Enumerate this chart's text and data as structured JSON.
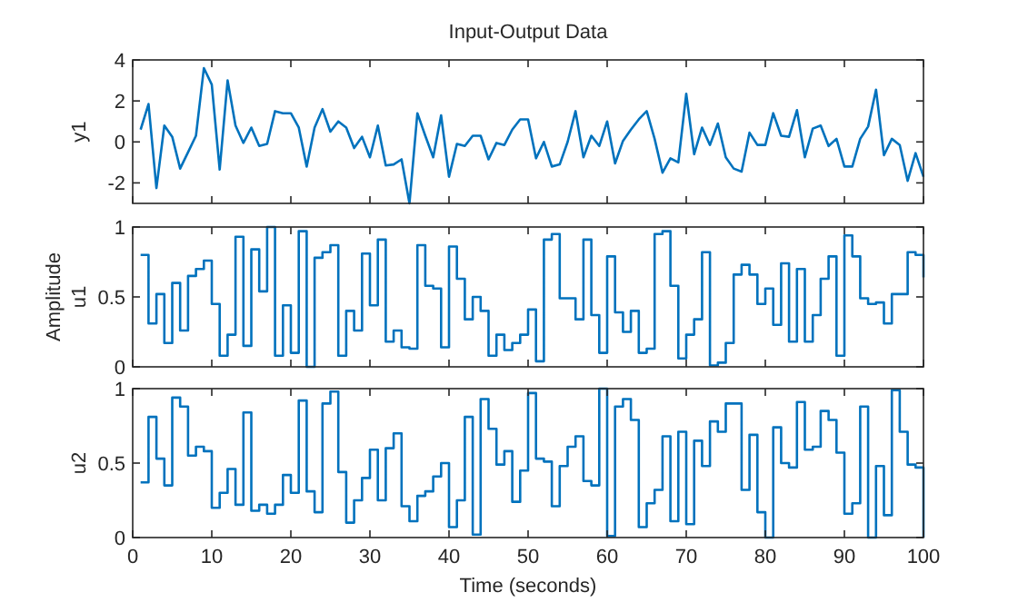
{
  "chart_data": [
    {
      "type": "line",
      "title": "Input-Output Data",
      "ylabel": "y1",
      "tick_labels": "y",
      "x": [
        1,
        2,
        3,
        4,
        5,
        6,
        7,
        8,
        9,
        10,
        11,
        12,
        13,
        14,
        15,
        16,
        17,
        18,
        19,
        20,
        21,
        22,
        23,
        24,
        25,
        26,
        27,
        28,
        29,
        30,
        31,
        32,
        33,
        34,
        35,
        36,
        37,
        38,
        39,
        40,
        41,
        42,
        43,
        44,
        45,
        46,
        47,
        48,
        49,
        50,
        51,
        52,
        53,
        54,
        55,
        56,
        57,
        58,
        59,
        60,
        61,
        62,
        63,
        64,
        65,
        66,
        67,
        68,
        69,
        70,
        71,
        72,
        73,
        74,
        75,
        76,
        77,
        78,
        79,
        80,
        81,
        82,
        83,
        84,
        85,
        86,
        87,
        88,
        89,
        90,
        91,
        92,
        93,
        94,
        95,
        96,
        97,
        98,
        99,
        100
      ],
      "series": [
        {
          "color": "#0072bd",
          "values": [
            0.6,
            1.85,
            -2.25,
            0.8,
            0.25,
            -1.3,
            -0.5,
            0.3,
            3.6,
            2.8,
            -1.35,
            3.0,
            0.8,
            -0.05,
            0.7,
            -0.2,
            -0.1,
            1.5,
            1.4,
            1.4,
            0.7,
            -1.2,
            0.7,
            1.6,
            0.5,
            1.0,
            0.7,
            -0.3,
            0.25,
            -0.75,
            0.8,
            -1.15,
            -1.1,
            -0.85,
            -3.0,
            1.4,
            0.3,
            -0.75,
            1.3,
            -1.7,
            -0.1,
            -0.2,
            0.3,
            0.3,
            -0.85,
            -0.05,
            -0.15,
            0.6,
            1.1,
            1.1,
            -0.8,
            0.0,
            -1.2,
            -1.1,
            0.0,
            1.5,
            -0.75,
            0.3,
            -0.2,
            1.0,
            -1.05,
            0.05,
            0.6,
            1.1,
            1.5,
            0.15,
            -1.5,
            -0.8,
            -1.0,
            2.35,
            -0.6,
            0.7,
            -0.15,
            0.9,
            -0.75,
            -1.3,
            -1.45,
            0.45,
            -0.15,
            -0.15,
            1.4,
            0.3,
            0.25,
            1.55,
            -0.75,
            0.65,
            0.8,
            -0.2,
            0.15,
            -1.2,
            -1.2,
            0.15,
            0.75,
            2.55,
            -0.65,
            0.15,
            -0.15,
            -1.9,
            -0.55,
            -1.7
          ]
        }
      ],
      "xlim": [
        0,
        100
      ],
      "xticks": [
        {
          "value": 0,
          "label": null
        },
        {
          "value": 10,
          "label": null
        },
        {
          "value": 20,
          "label": null
        },
        {
          "value": 30,
          "label": null
        },
        {
          "value": 40,
          "label": null
        },
        {
          "value": 50,
          "label": null
        },
        {
          "value": 60,
          "label": null
        },
        {
          "value": 70,
          "label": null
        },
        {
          "value": 80,
          "label": null
        },
        {
          "value": 90,
          "label": null
        },
        {
          "value": 100,
          "label": null
        }
      ],
      "ylim": [
        -3,
        4
      ],
      "yticks": [
        -2,
        0,
        2,
        4
      ]
    },
    {
      "type": "step",
      "ylabel": "u1",
      "annotations": [
        "Amplitude"
      ],
      "tick_labels": "y",
      "x": [
        1,
        2,
        3,
        4,
        5,
        6,
        7,
        8,
        9,
        10,
        11,
        12,
        13,
        14,
        15,
        16,
        17,
        18,
        19,
        20,
        21,
        22,
        23,
        24,
        25,
        26,
        27,
        28,
        29,
        30,
        31,
        32,
        33,
        34,
        35,
        36,
        37,
        38,
        39,
        40,
        41,
        42,
        43,
        44,
        45,
        46,
        47,
        48,
        49,
        50,
        51,
        52,
        53,
        54,
        55,
        56,
        57,
        58,
        59,
        60,
        61,
        62,
        63,
        64,
        65,
        66,
        67,
        68,
        69,
        70,
        71,
        72,
        73,
        74,
        75,
        76,
        77,
        78,
        79,
        80,
        81,
        82,
        83,
        84,
        85,
        86,
        87,
        88,
        89,
        90,
        91,
        92,
        93,
        94,
        95,
        96,
        97,
        98,
        99,
        100
      ],
      "series": [
        {
          "color": "#0072bd",
          "values": [
            0.8,
            0.31,
            0.52,
            0.17,
            0.6,
            0.26,
            0.65,
            0.7,
            0.76,
            0.45,
            0.08,
            0.23,
            0.93,
            0.15,
            0.84,
            0.54,
            1.0,
            0.08,
            0.44,
            0.1,
            0.97,
            0.0,
            0.78,
            0.82,
            0.87,
            0.08,
            0.4,
            0.26,
            0.81,
            0.44,
            0.91,
            0.18,
            0.26,
            0.14,
            0.13,
            0.87,
            0.58,
            0.56,
            0.14,
            0.86,
            0.63,
            0.34,
            0.5,
            0.4,
            0.08,
            0.23,
            0.12,
            0.17,
            0.23,
            0.41,
            0.04,
            0.91,
            0.95,
            0.49,
            0.49,
            0.34,
            0.91,
            0.37,
            0.1,
            0.79,
            0.39,
            0.25,
            0.4,
            0.1,
            0.13,
            0.95,
            0.97,
            0.58,
            0.06,
            0.23,
            0.34,
            0.82,
            0.01,
            0.03,
            0.17,
            0.66,
            0.73,
            0.66,
            0.45,
            0.56,
            0.3,
            0.74,
            0.18,
            0.7,
            0.18,
            0.37,
            0.63,
            0.79,
            0.08,
            0.94,
            0.79,
            0.49,
            0.45,
            0.46,
            0.31,
            0.52,
            0.52,
            0.82,
            0.8,
            0.64
          ]
        }
      ],
      "xlim": [
        0,
        100
      ],
      "xticks": [
        {
          "value": 0,
          "label": null
        },
        {
          "value": 10,
          "label": null
        },
        {
          "value": 20,
          "label": null
        },
        {
          "value": 30,
          "label": null
        },
        {
          "value": 40,
          "label": null
        },
        {
          "value": 50,
          "label": null
        },
        {
          "value": 60,
          "label": null
        },
        {
          "value": 70,
          "label": null
        },
        {
          "value": 80,
          "label": null
        },
        {
          "value": 90,
          "label": null
        },
        {
          "value": 100,
          "label": null
        }
      ],
      "ylim": [
        0,
        1
      ],
      "yticks": [
        0,
        0.5,
        1
      ]
    },
    {
      "type": "step",
      "ylabel": "u2",
      "xlabel": "Time (seconds)",
      "x": [
        1,
        2,
        3,
        4,
        5,
        6,
        7,
        8,
        9,
        10,
        11,
        12,
        13,
        14,
        15,
        16,
        17,
        18,
        19,
        20,
        21,
        22,
        23,
        24,
        25,
        26,
        27,
        28,
        29,
        30,
        31,
        32,
        33,
        34,
        35,
        36,
        37,
        38,
        39,
        40,
        41,
        42,
        43,
        44,
        45,
        46,
        47,
        48,
        49,
        50,
        51,
        52,
        53,
        54,
        55,
        56,
        57,
        58,
        59,
        60,
        61,
        62,
        63,
        64,
        65,
        66,
        67,
        68,
        69,
        70,
        71,
        72,
        73,
        74,
        75,
        76,
        77,
        78,
        79,
        80,
        81,
        82,
        83,
        84,
        85,
        86,
        87,
        88,
        89,
        90,
        91,
        92,
        93,
        94,
        95,
        96,
        97,
        98,
        99,
        100
      ],
      "series": [
        {
          "color": "#0072bd",
          "values": [
            0.37,
            0.81,
            0.53,
            0.35,
            0.94,
            0.88,
            0.55,
            0.61,
            0.58,
            0.2,
            0.3,
            0.46,
            0.22,
            0.84,
            0.18,
            0.22,
            0.16,
            0.22,
            0.42,
            0.3,
            0.92,
            0.31,
            0.17,
            0.9,
            0.98,
            0.44,
            0.1,
            0.25,
            0.4,
            0.59,
            0.25,
            0.6,
            0.7,
            0.21,
            0.11,
            0.28,
            0.31,
            0.41,
            0.5,
            0.07,
            0.25,
            0.81,
            0.02,
            0.93,
            0.73,
            0.49,
            0.58,
            0.24,
            0.45,
            0.97,
            0.53,
            0.51,
            0.21,
            0.48,
            0.61,
            0.68,
            0.38,
            0.35,
            1.0,
            0.01,
            0.88,
            0.93,
            0.79,
            0.07,
            0.23,
            0.32,
            0.68,
            0.11,
            0.71,
            0.09,
            0.65,
            0.48,
            0.78,
            0.71,
            0.9,
            0.9,
            0.32,
            0.69,
            0.17,
            0.0,
            0.74,
            0.5,
            0.47,
            0.91,
            0.59,
            0.61,
            0.85,
            0.79,
            0.57,
            0.16,
            0.23,
            0.88,
            0.0,
            0.48,
            0.15,
            0.99,
            0.71,
            0.49,
            0.47,
            0.0
          ]
        }
      ],
      "xlim": [
        0,
        100
      ],
      "xticks": [
        0,
        10,
        20,
        30,
        40,
        50,
        60,
        70,
        80,
        90,
        100
      ],
      "ylim": [
        0,
        1
      ],
      "yticks": [
        0,
        0.5,
        1
      ]
    }
  ]
}
